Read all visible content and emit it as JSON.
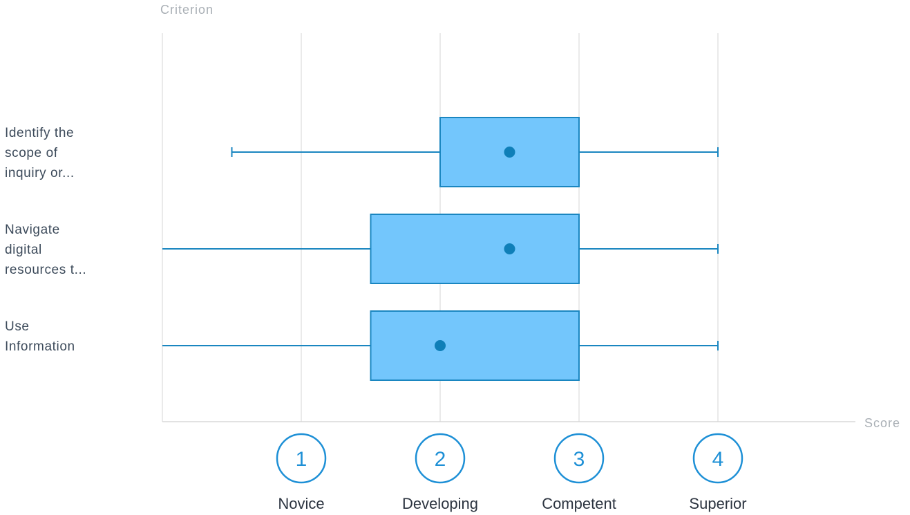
{
  "chart_data": {
    "type": "boxplot",
    "orientation": "horizontal",
    "ylabel": "Criterion",
    "xlabel": "Score",
    "xlim": [
      0,
      5
    ],
    "grid": true,
    "ticks": [
      {
        "value": 1,
        "label": "1",
        "name": "Novice"
      },
      {
        "value": 2,
        "label": "2",
        "name": "Developing"
      },
      {
        "value": 3,
        "label": "3",
        "name": "Competent"
      },
      {
        "value": 4,
        "label": "4",
        "name": "Superior"
      }
    ],
    "categories": [
      {
        "label_lines": [
          "Identify the",
          "scope of",
          "inquiry or..."
        ],
        "min": 0.5,
        "q1": 2,
        "q3": 3,
        "max": 4,
        "mean": 2.5
      },
      {
        "label_lines": [
          "Navigate",
          "digital",
          "resources t..."
        ],
        "min": 0,
        "q1": 1.5,
        "q3": 3,
        "max": 4,
        "mean": 2.5
      },
      {
        "label_lines": [
          "Use",
          "Information"
        ],
        "min": 0,
        "q1": 1.5,
        "q3": 3,
        "max": 4,
        "mean": 2
      }
    ],
    "colors": {
      "box_fill": "#73c6fc",
      "box_stroke": "#1a86c0",
      "whisker": "#1a86c0",
      "mean_dot": "#0f7fb8",
      "grid": "#e3e3e3",
      "axis": "#d8d8d8",
      "tick_circle": "#1e90d6"
    }
  }
}
